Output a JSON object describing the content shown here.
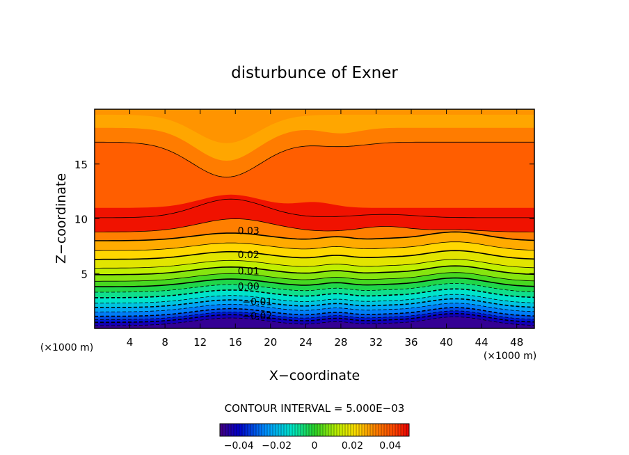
{
  "chart_data": {
    "type": "heatmap",
    "title": "disturbunce of Exner",
    "xlabel": "X−coordinate",
    "ylabel": "Z−coordinate",
    "x_unit": "(×1000 m)",
    "y_unit": "(×1000 m)",
    "xlim": [
      0,
      50
    ],
    "ylim": [
      0,
      20
    ],
    "x_ticks": [
      4,
      8,
      12,
      16,
      20,
      24,
      28,
      32,
      36,
      40,
      44,
      48
    ],
    "y_ticks": [
      5,
      10,
      15
    ],
    "contour_interval_text": "CONTOUR INTERVAL = 5.000E−03",
    "contour_interval": 0.005,
    "contour_labels": [
      {
        "text": "0.03",
        "x": 17.5,
        "y": 9.0
      },
      {
        "text": "0.02",
        "x": 17.5,
        "y": 6.8
      },
      {
        "text": "0.01",
        "x": 17.5,
        "y": 5.3
      },
      {
        "text": "0.00",
        "x": 17.5,
        "y": 3.9
      },
      {
        "text": "−0.01",
        "x": 18.5,
        "y": 2.5
      },
      {
        "text": "−0.02",
        "x": 18.5,
        "y": 1.2
      }
    ],
    "value_range": [
      -0.05,
      0.05
    ],
    "colorbar_ticks": [
      {
        "text": "−0.04",
        "value": -0.04
      },
      {
        "text": "−0.02",
        "value": -0.02
      },
      {
        "text": "0",
        "value": 0
      },
      {
        "text": "0.02",
        "value": 0.02
      },
      {
        "text": "0.04",
        "value": 0.04
      }
    ]
  }
}
